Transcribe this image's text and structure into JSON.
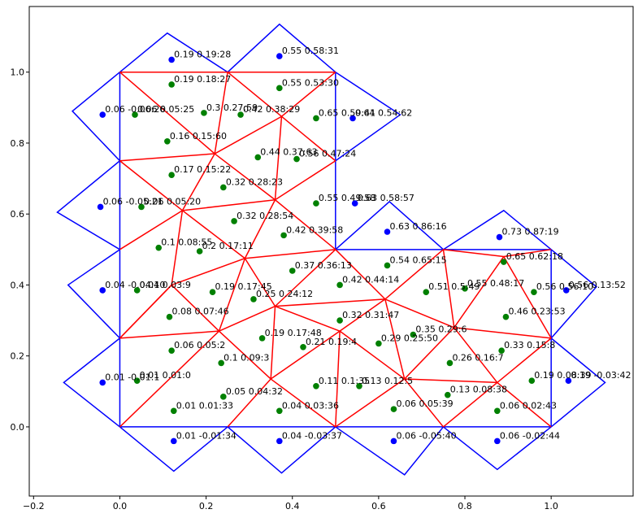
{
  "chart_data": {
    "type": "scatter",
    "title": "",
    "xlabel": "",
    "ylabel": "",
    "xlim": [
      -0.21,
      1.19
    ],
    "ylim": [
      -0.195,
      1.185
    ],
    "grid": false,
    "x_ticks": [
      -0.2,
      0.0,
      0.2,
      0.4,
      0.6,
      0.8,
      1.0
    ],
    "x_tick_labels": [
      "−0.2",
      "0.0",
      "0.2",
      "0.4",
      "0.6",
      "0.8",
      "1.0"
    ],
    "y_ticks": [
      0.0,
      0.2,
      0.4,
      0.6,
      0.8,
      1.0
    ],
    "y_tick_labels": [
      "0.0",
      "0.2",
      "0.4",
      "0.6",
      "0.8",
      "1.0"
    ],
    "colors": {
      "outline": "#0000ff",
      "mesh": "#ff0000",
      "interior_point": "#008000",
      "boundary_point": "#0000ff"
    },
    "blue_boundary": [
      [
        [
          0,
          0
        ],
        [
          0.5,
          0
        ]
      ],
      [
        [
          0.5,
          0
        ],
        [
          1,
          0
        ]
      ],
      [
        [
          1,
          0
        ],
        [
          1,
          0.25
        ]
      ],
      [
        [
          1,
          0.25
        ],
        [
          1,
          0.5
        ]
      ],
      [
        [
          1,
          0.5
        ],
        [
          0.75,
          0.5
        ]
      ],
      [
        [
          0.75,
          0.5
        ],
        [
          0.5,
          0.5
        ]
      ],
      [
        [
          0.5,
          0.5
        ],
        [
          0.5,
          0.75
        ]
      ],
      [
        [
          0.5,
          0.75
        ],
        [
          0.5,
          1
        ]
      ],
      [
        [
          0.5,
          1
        ],
        [
          0.25,
          1
        ]
      ],
      [
        [
          0.25,
          1
        ],
        [
          0,
          1
        ]
      ],
      [
        [
          0,
          1
        ],
        [
          0,
          0.75
        ]
      ],
      [
        [
          0,
          0.75
        ],
        [
          0,
          0.5
        ]
      ],
      [
        [
          0,
          0.5
        ],
        [
          0,
          0.25
        ]
      ],
      [
        [
          0,
          0.25
        ],
        [
          0,
          0
        ]
      ]
    ],
    "blue_diamonds": [
      [
        [
          0,
          0
        ],
        [
          0.125,
          -0.125
        ],
        [
          0.25,
          0
        ]
      ],
      [
        [
          0.25,
          0
        ],
        [
          0.375,
          -0.13
        ],
        [
          0.5,
          0
        ]
      ],
      [
        [
          0.5,
          0
        ],
        [
          0.66,
          -0.135
        ],
        [
          0.75,
          0
        ]
      ],
      [
        [
          0.75,
          0
        ],
        [
          0.875,
          -0.12
        ],
        [
          1,
          0
        ]
      ],
      [
        [
          0,
          1
        ],
        [
          0.11,
          1.11
        ],
        [
          0.25,
          1
        ]
      ],
      [
        [
          0.25,
          1
        ],
        [
          0.37,
          1.135
        ],
        [
          0.5,
          1
        ]
      ],
      [
        [
          0,
          0.75
        ],
        [
          -0.11,
          0.89
        ],
        [
          0,
          1
        ]
      ],
      [
        [
          0,
          0.5
        ],
        [
          -0.145,
          0.605
        ],
        [
          0,
          0.75
        ]
      ],
      [
        [
          0,
          0.25
        ],
        [
          -0.12,
          0.4
        ],
        [
          0,
          0.5
        ]
      ],
      [
        [
          0,
          0
        ],
        [
          -0.13,
          0.125
        ],
        [
          0,
          0.25
        ]
      ],
      [
        [
          1,
          0
        ],
        [
          1.125,
          0.125
        ],
        [
          1,
          0.25
        ]
      ],
      [
        [
          1,
          0.25
        ],
        [
          1.105,
          0.395
        ],
        [
          1,
          0.5
        ]
      ],
      [
        [
          0.5,
          0.5
        ],
        [
          0.625,
          0.635
        ],
        [
          0.75,
          0.5
        ]
      ],
      [
        [
          0.75,
          0.5
        ],
        [
          0.89,
          0.61
        ],
        [
          1,
          0.5
        ]
      ],
      [
        [
          0.5,
          0.75
        ],
        [
          0.65,
          0.88
        ],
        [
          0.5,
          1
        ]
      ]
    ],
    "red_edges": [
      [
        [
          0,
          1
        ],
        [
          0.25,
          1
        ]
      ],
      [
        [
          0.25,
          1
        ],
        [
          0.5,
          1
        ]
      ],
      [
        [
          0,
          0.75
        ],
        [
          0.22,
          0.77
        ]
      ],
      [
        [
          0.22,
          0.77
        ],
        [
          0.375,
          0.875
        ]
      ],
      [
        [
          0.375,
          0.875
        ],
        [
          0.5,
          0.75
        ]
      ],
      [
        [
          0,
          0.5
        ],
        [
          0.145,
          0.61
        ]
      ],
      [
        [
          0.145,
          0.61
        ],
        [
          0.22,
          0.77
        ]
      ],
      [
        [
          0.22,
          0.77
        ],
        [
          0.36,
          0.64
        ]
      ],
      [
        [
          0.36,
          0.64
        ],
        [
          0.5,
          0.75
        ]
      ],
      [
        [
          0.145,
          0.61
        ],
        [
          0.36,
          0.64
        ]
      ],
      [
        [
          0.36,
          0.64
        ],
        [
          0.5,
          0.5
        ]
      ],
      [
        [
          0,
          0.25
        ],
        [
          0.12,
          0.4
        ]
      ],
      [
        [
          0.12,
          0.4
        ],
        [
          0.145,
          0.61
        ]
      ],
      [
        [
          0.12,
          0.4
        ],
        [
          0.29,
          0.475
        ]
      ],
      [
        [
          0.145,
          0.61
        ],
        [
          0.29,
          0.475
        ]
      ],
      [
        [
          0.29,
          0.475
        ],
        [
          0.5,
          0.5
        ]
      ],
      [
        [
          0.36,
          0.64
        ],
        [
          0.29,
          0.475
        ]
      ],
      [
        [
          0.12,
          0.4
        ],
        [
          0.23,
          0.27
        ]
      ],
      [
        [
          0.23,
          0.27
        ],
        [
          0.36,
          0.34
        ]
      ],
      [
        [
          0.36,
          0.34
        ],
        [
          0.29,
          0.475
        ]
      ],
      [
        [
          0.29,
          0.475
        ],
        [
          0.23,
          0.27
        ]
      ],
      [
        [
          0.36,
          0.34
        ],
        [
          0.5,
          0.5
        ]
      ],
      [
        [
          0,
          0.25
        ],
        [
          0.23,
          0.27
        ]
      ],
      [
        [
          0,
          0
        ],
        [
          0.23,
          0.27
        ]
      ],
      [
        [
          0.23,
          0.27
        ],
        [
          0.35,
          0.135
        ]
      ],
      [
        [
          0.36,
          0.34
        ],
        [
          0.35,
          0.135
        ]
      ],
      [
        [
          0.35,
          0.135
        ],
        [
          0.5,
          0
        ]
      ],
      [
        [
          0.36,
          0.34
        ],
        [
          0.51,
          0.27
        ]
      ],
      [
        [
          0.51,
          0.27
        ],
        [
          0.5,
          0
        ]
      ],
      [
        [
          0.36,
          0.34
        ],
        [
          0.615,
          0.36
        ]
      ],
      [
        [
          0.5,
          0.5
        ],
        [
          0.615,
          0.36
        ]
      ],
      [
        [
          0.615,
          0.36
        ],
        [
          0.51,
          0.27
        ]
      ],
      [
        [
          0.51,
          0.27
        ],
        [
          0.66,
          0.135
        ]
      ],
      [
        [
          0.615,
          0.36
        ],
        [
          0.66,
          0.135
        ]
      ],
      [
        [
          0.66,
          0.135
        ],
        [
          0.5,
          0
        ]
      ],
      [
        [
          0.66,
          0.135
        ],
        [
          0.75,
          0
        ]
      ],
      [
        [
          0.615,
          0.36
        ],
        [
          0.75,
          0.5
        ]
      ],
      [
        [
          0.75,
          0.5
        ],
        [
          0.775,
          0.28
        ]
      ],
      [
        [
          0.615,
          0.36
        ],
        [
          0.775,
          0.28
        ]
      ],
      [
        [
          0.775,
          0.28
        ],
        [
          0.66,
          0.135
        ]
      ],
      [
        [
          0.775,
          0.28
        ],
        [
          0.875,
          0.125
        ]
      ],
      [
        [
          0.875,
          0.125
        ],
        [
          1,
          0.25
        ]
      ],
      [
        [
          0.875,
          0.125
        ],
        [
          1,
          0
        ]
      ],
      [
        [
          0.875,
          0.125
        ],
        [
          0.75,
          0
        ]
      ],
      [
        [
          0.775,
          0.28
        ],
        [
          0.89,
          0.48
        ]
      ],
      [
        [
          0.89,
          0.48
        ],
        [
          1,
          0.5
        ]
      ],
      [
        [
          0.89,
          0.48
        ],
        [
          0.75,
          0.5
        ]
      ],
      [
        [
          0.89,
          0.48
        ],
        [
          1,
          0.25
        ]
      ],
      [
        [
          0.775,
          0.28
        ],
        [
          1,
          0.25
        ]
      ],
      [
        [
          0.66,
          0.135
        ],
        [
          0.875,
          0.125
        ]
      ],
      [
        [
          0.35,
          0.135
        ],
        [
          0.51,
          0.27
        ]
      ],
      [
        [
          0.25,
          0
        ],
        [
          0.35,
          0.135
        ]
      ],
      [
        [
          0,
          0.25
        ],
        [
          0.12,
          0.4
        ]
      ],
      [
        [
          0,
          0.75
        ],
        [
          0.145,
          0.61
        ]
      ],
      [
        [
          0.22,
          0.77
        ],
        [
          0.25,
          1
        ]
      ],
      [
        [
          0,
          1
        ],
        [
          0.22,
          0.77
        ]
      ],
      [
        [
          0.375,
          0.875
        ],
        [
          0.25,
          1
        ]
      ],
      [
        [
          0.375,
          0.875
        ],
        [
          0.5,
          1
        ]
      ],
      [
        [
          0.375,
          0.875
        ],
        [
          0.36,
          0.64
        ]
      ]
    ],
    "green_points": [
      {
        "x": 0.12,
        "y": 0.965,
        "label": "0.19 0.18:27"
      },
      {
        "x": 0.37,
        "y": 0.955,
        "label": "0.55 0.53:30"
      },
      {
        "x": 0.035,
        "y": 0.88,
        "label": "0.06 0.05:25"
      },
      {
        "x": 0.195,
        "y": 0.885,
        "label": "0.3 0.27:59"
      },
      {
        "x": 0.28,
        "y": 0.88,
        "label": "0.42 0.38:29"
      },
      {
        "x": 0.455,
        "y": 0.87,
        "label": "0.65 0.59:41"
      },
      {
        "x": 0.11,
        "y": 0.805,
        "label": "0.16 0.15:60"
      },
      {
        "x": 0.32,
        "y": 0.76,
        "label": "0.44 0.37:63"
      },
      {
        "x": 0.41,
        "y": 0.755,
        "label": "0.56 0.47:24"
      },
      {
        "x": 0.12,
        "y": 0.71,
        "label": "0.17 0.15:22"
      },
      {
        "x": 0.24,
        "y": 0.675,
        "label": "0.32 0.28:23"
      },
      {
        "x": 0.455,
        "y": 0.63,
        "label": "0.55 0.49:58"
      },
      {
        "x": 0.05,
        "y": 0.62,
        "label": "0.06 0.05:20"
      },
      {
        "x": 0.265,
        "y": 0.58,
        "label": "0.32 0.28:54"
      },
      {
        "x": 0.38,
        "y": 0.54,
        "label": "0.42 0.39:58"
      },
      {
        "x": 0.09,
        "y": 0.505,
        "label": "0.1 0.08:55"
      },
      {
        "x": 0.185,
        "y": 0.495,
        "label": "0.2 0.17:11"
      },
      {
        "x": 0.62,
        "y": 0.455,
        "label": "0.54 0.65:15"
      },
      {
        "x": 0.89,
        "y": 0.465,
        "label": "0.65 0.62:18"
      },
      {
        "x": 0.4,
        "y": 0.44,
        "label": "0.37 0.36:13"
      },
      {
        "x": 0.51,
        "y": 0.4,
        "label": "0.42 0.44:14"
      },
      {
        "x": 0.04,
        "y": 0.385,
        "label": "0.04 0.03:9"
      },
      {
        "x": 0.215,
        "y": 0.38,
        "label": "0.19 0.17:45"
      },
      {
        "x": 0.71,
        "y": 0.38,
        "label": "0.51 0.5:49"
      },
      {
        "x": 0.8,
        "y": 0.39,
        "label": "0.55 0.48:17"
      },
      {
        "x": 0.96,
        "y": 0.38,
        "label": "0.56 0.56:10"
      },
      {
        "x": 0.31,
        "y": 0.36,
        "label": "0.25 0.24:12"
      },
      {
        "x": 0.115,
        "y": 0.31,
        "label": "0.08 0.07:46"
      },
      {
        "x": 0.895,
        "y": 0.31,
        "label": "0.46 0.23:53"
      },
      {
        "x": 0.51,
        "y": 0.3,
        "label": "0.32 0.31:47"
      },
      {
        "x": 0.68,
        "y": 0.26,
        "label": "0.35 0.29:6"
      },
      {
        "x": 0.33,
        "y": 0.25,
        "label": "0.19 0.17:48"
      },
      {
        "x": 0.425,
        "y": 0.225,
        "label": "0.21 0.19:4"
      },
      {
        "x": 0.6,
        "y": 0.235,
        "label": "0.29 0.25:50"
      },
      {
        "x": 0.12,
        "y": 0.215,
        "label": "0.06 0.05:2"
      },
      {
        "x": 0.885,
        "y": 0.215,
        "label": "0.33 0.15:8"
      },
      {
        "x": 0.765,
        "y": 0.18,
        "label": "0.26 0.16:7"
      },
      {
        "x": 0.235,
        "y": 0.18,
        "label": "0.1 0.09:3"
      },
      {
        "x": 0.04,
        "y": 0.13,
        "label": "0.01 0.01:0"
      },
      {
        "x": 0.455,
        "y": 0.115,
        "label": "0.11 0.1:35"
      },
      {
        "x": 0.555,
        "y": 0.115,
        "label": "0.13 0.12:5"
      },
      {
        "x": 0.955,
        "y": 0.13,
        "label": "0.19 0.08:39"
      },
      {
        "x": 0.76,
        "y": 0.09,
        "label": "0.13 0.08:38"
      },
      {
        "x": 0.24,
        "y": 0.085,
        "label": "0.05 0.04:32"
      },
      {
        "x": 0.37,
        "y": 0.045,
        "label": "0.04 0.03:36"
      },
      {
        "x": 0.635,
        "y": 0.05,
        "label": "0.06 0.05:39"
      },
      {
        "x": 0.875,
        "y": 0.045,
        "label": "0.06 0.02:43"
      },
      {
        "x": 0.125,
        "y": 0.045,
        "label": "0.01 0.01:33"
      }
    ],
    "blue_points": [
      {
        "x": 0.12,
        "y": 1.035,
        "label": "0.19 0.19:28"
      },
      {
        "x": 0.37,
        "y": 1.045,
        "label": "0.55 0.58:31"
      },
      {
        "x": -0.04,
        "y": 0.88,
        "label": "0.06 -0.06:26"
      },
      {
        "x": 0.54,
        "y": 0.87,
        "label": "0.64 0.54:62"
      },
      {
        "x": -0.045,
        "y": 0.62,
        "label": "0.06 -0.05:21"
      },
      {
        "x": 0.545,
        "y": 0.63,
        "label": "0.63 0.58:57"
      },
      {
        "x": 0.62,
        "y": 0.55,
        "label": "0.63 0.86:16"
      },
      {
        "x": 0.88,
        "y": 0.535,
        "label": "0.73 0.87:19"
      },
      {
        "x": -0.04,
        "y": 0.385,
        "label": "0.04 -0.04:10"
      },
      {
        "x": 1.035,
        "y": 0.385,
        "label": "0.56 0.13:52"
      },
      {
        "x": -0.04,
        "y": 0.125,
        "label": "0.01 -0.01:1"
      },
      {
        "x": 1.04,
        "y": 0.13,
        "label": "0.19 -0.03:42"
      },
      {
        "x": 0.125,
        "y": -0.04,
        "label": "0.01 -0.01:34"
      },
      {
        "x": 0.37,
        "y": -0.04,
        "label": "0.04 -0.03:37"
      },
      {
        "x": 0.635,
        "y": -0.04,
        "label": "0.06 -0.05:40"
      },
      {
        "x": 0.875,
        "y": -0.04,
        "label": "0.06 -0.02:44"
      }
    ]
  }
}
